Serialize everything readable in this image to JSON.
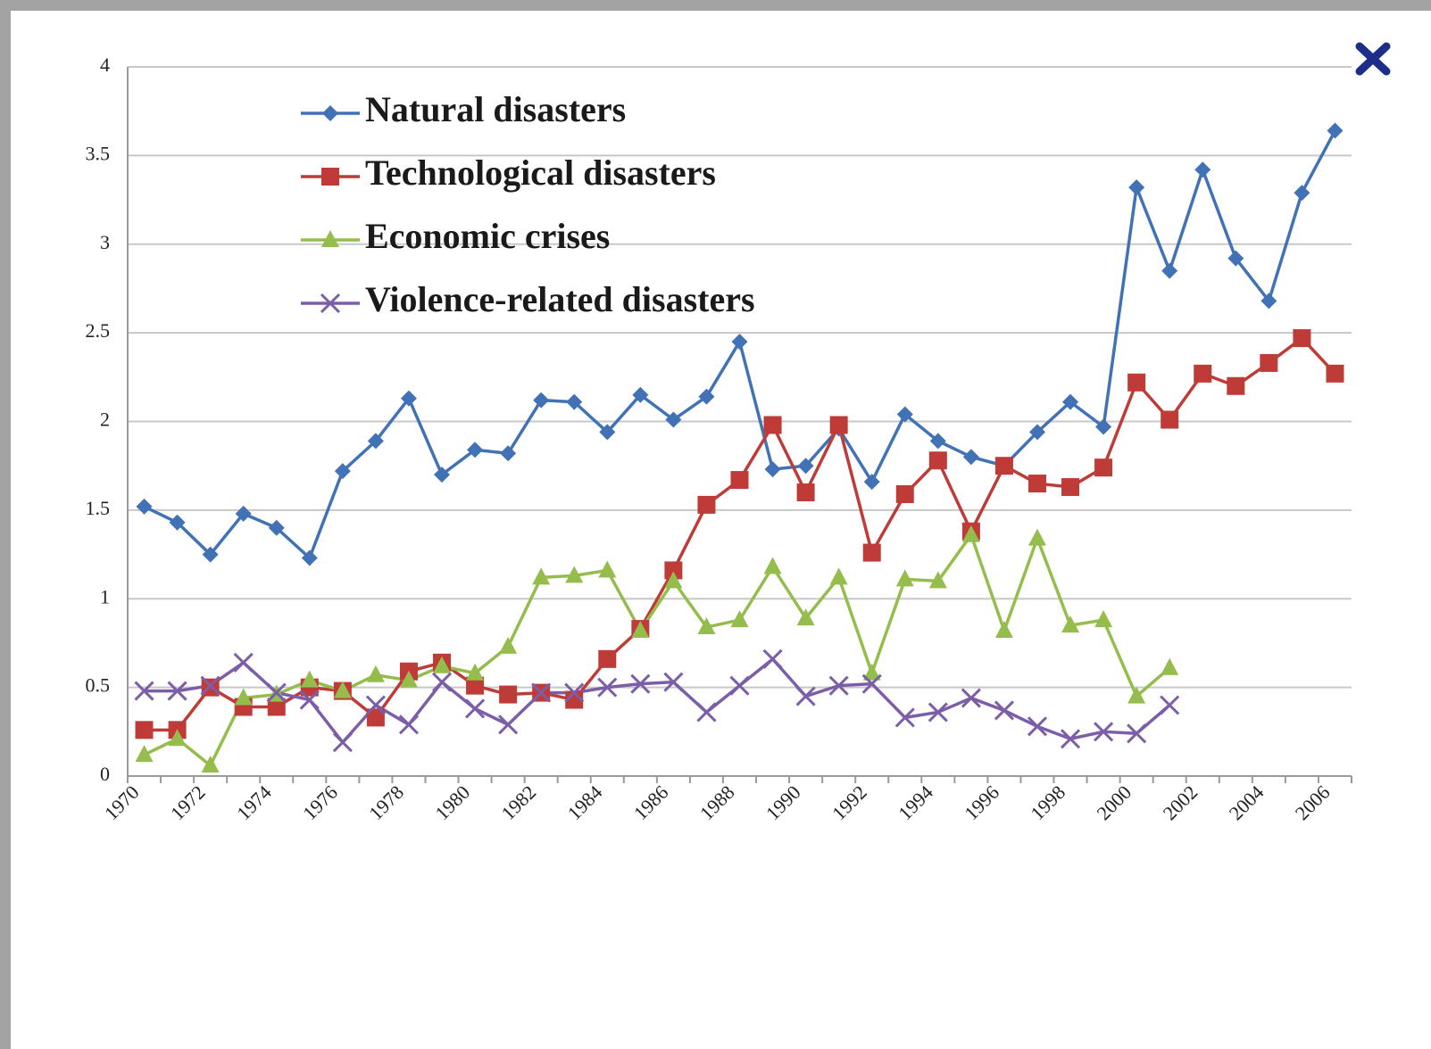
{
  "chart_data": {
    "type": "line",
    "categories": [
      1970,
      null,
      1972,
      null,
      1974,
      null,
      1976,
      null,
      1978,
      null,
      1980,
      null,
      1982,
      null,
      1984,
      null,
      1986,
      null,
      1988,
      null,
      1990,
      null,
      1992,
      null,
      1994,
      null,
      1996,
      null,
      1998,
      null,
      2000,
      null,
      2002,
      null,
      2004,
      null,
      2006
    ],
    "series": [
      {
        "name": "Natural disasters",
        "color": "#4172b6",
        "marker": "diamond",
        "values": [
          1.52,
          1.43,
          1.25,
          1.48,
          1.4,
          1.23,
          1.72,
          1.89,
          2.13,
          1.7,
          1.84,
          1.82,
          2.12,
          2.11,
          1.94,
          2.15,
          2.01,
          2.14,
          2.45,
          1.73,
          1.75,
          1.96,
          1.66,
          2.04,
          1.89,
          1.8,
          1.75,
          1.94,
          2.11,
          1.97,
          3.32,
          2.85,
          3.42,
          2.92,
          2.68,
          3.29,
          3.64
        ]
      },
      {
        "name": "Technological disasters",
        "color": "#bf3b37",
        "marker": "square",
        "values": [
          0.26,
          0.26,
          0.5,
          0.39,
          0.39,
          0.5,
          0.48,
          0.33,
          0.59,
          0.64,
          0.51,
          0.46,
          0.47,
          0.43,
          0.66,
          0.83,
          1.16,
          1.53,
          1.67,
          1.98,
          1.6,
          1.98,
          1.26,
          1.59,
          1.78,
          1.38,
          1.75,
          1.65,
          1.63,
          1.74,
          2.22,
          2.01,
          2.27,
          2.2,
          2.33,
          2.47,
          2.27
        ]
      },
      {
        "name": "Economic crises",
        "color": "#94bd4c",
        "marker": "triangle",
        "values": [
          0.12,
          0.21,
          0.06,
          0.44,
          0.46,
          0.54,
          0.48,
          0.57,
          0.54,
          0.62,
          0.58,
          0.73,
          1.12,
          1.13,
          1.16,
          0.82,
          1.1,
          0.84,
          0.88,
          1.18,
          0.89,
          1.12,
          0.58,
          1.11,
          1.1,
          1.36,
          0.82,
          1.34,
          0.85,
          0.88,
          0.45,
          0.61,
          null,
          null,
          null,
          null,
          null
        ]
      },
      {
        "name": "Violence-related disasters",
        "color": "#7b5ea7",
        "marker": "x",
        "values": [
          0.48,
          0.48,
          0.51,
          0.64,
          0.47,
          0.43,
          0.19,
          0.4,
          0.29,
          0.53,
          0.38,
          0.29,
          0.47,
          0.47,
          0.5,
          0.52,
          0.53,
          0.36,
          0.51,
          0.66,
          0.45,
          0.51,
          0.52,
          0.33,
          0.36,
          0.44,
          0.37,
          0.28,
          0.21,
          0.25,
          0.24,
          0.4,
          null,
          null,
          null,
          null,
          null
        ]
      }
    ],
    "ylim": [
      0,
      4
    ],
    "yticks": [
      0,
      0.5,
      1,
      1.5,
      2,
      2.5,
      3,
      3.5,
      4
    ],
    "grid": true,
    "legend": "top-left"
  }
}
